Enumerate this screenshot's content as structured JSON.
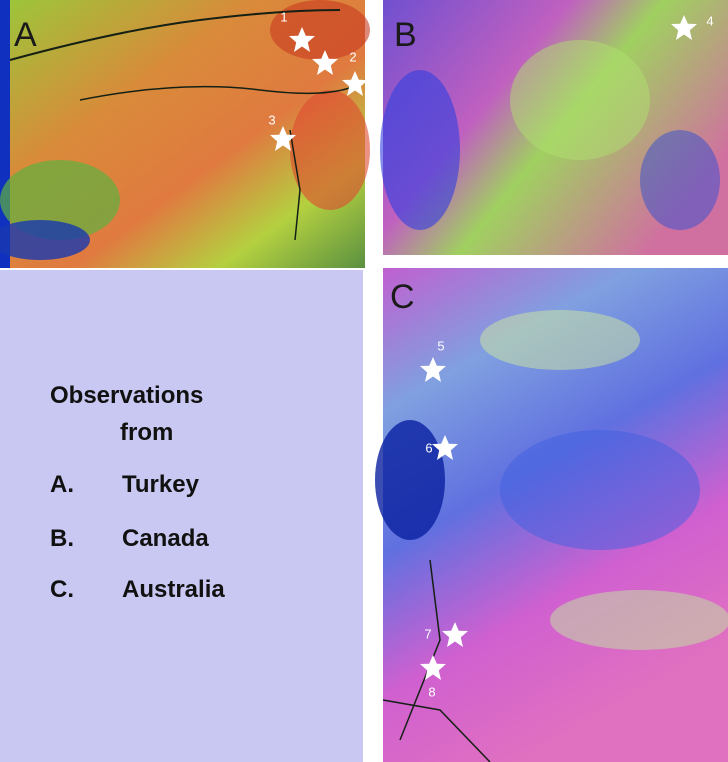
{
  "panels": [
    {
      "label": "A",
      "stars": [
        "1",
        "2",
        "3"
      ]
    },
    {
      "label": "B",
      "stars": [
        "4"
      ]
    },
    {
      "label": "C",
      "stars": [
        "5",
        "6",
        "7",
        "8"
      ]
    }
  ],
  "legend": {
    "title_lines": [
      "Observations",
      "from"
    ],
    "items": [
      {
        "letter": "A.",
        "country": "Turkey"
      },
      {
        "letter": "B.",
        "country": "Canada"
      },
      {
        "letter": "C.",
        "country": "Australia"
      }
    ]
  }
}
